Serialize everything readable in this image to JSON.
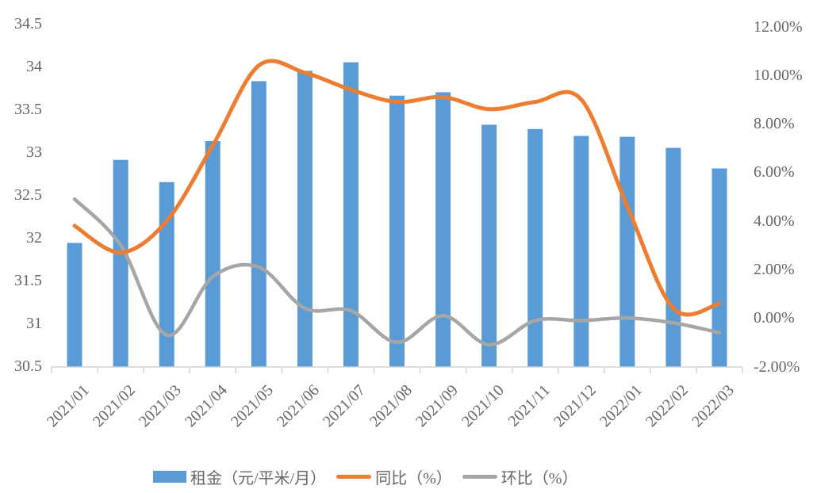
{
  "chart_data": {
    "type": "bar",
    "combo": "bar + two smoothed lines on secondary axis",
    "title": "",
    "grid": false,
    "legend_position": "bottom",
    "categories": [
      "2021/01",
      "2021/02",
      "2021/03",
      "2021/04",
      "2021/05",
      "2021/06",
      "2021/07",
      "2021/08",
      "2021/09",
      "2021/10",
      "2021/11",
      "2021/12",
      "2022/01",
      "2022/02",
      "2022/03"
    ],
    "series": [
      {
        "name": "租金（元/平米/月）",
        "type": "bar",
        "axis": "left",
        "color": "#5B9BD5",
        "values": [
          31.94,
          32.91,
          32.65,
          33.13,
          33.83,
          33.95,
          34.05,
          33.66,
          33.7,
          33.32,
          33.27,
          33.19,
          33.18,
          33.05,
          32.81
        ]
      },
      {
        "name": "同比（%）",
        "type": "line",
        "axis": "right",
        "color": "#ED7D31",
        "values": [
          3.8,
          2.7,
          4.0,
          7.1,
          10.4,
          10.1,
          9.4,
          8.9,
          9.1,
          8.6,
          8.9,
          9.0,
          4.6,
          0.4,
          0.6
        ]
      },
      {
        "name": "环比（%）",
        "type": "line",
        "axis": "right",
        "color": "#A6A6A6",
        "values": [
          4.9,
          3.0,
          -0.7,
          1.7,
          2.1,
          0.4,
          0.3,
          -1.0,
          0.1,
          -1.1,
          -0.1,
          -0.1,
          0.0,
          -0.2,
          -0.6
        ]
      }
    ],
    "left_axis": {
      "min": 30.5,
      "max": 34.5,
      "step": 0.5,
      "ticks": [
        "34.5",
        "34",
        "33.5",
        "33",
        "32.5",
        "32",
        "31.5",
        "31",
        "30.5"
      ],
      "values": [
        34.5,
        34,
        33.5,
        33,
        32.5,
        32,
        31.5,
        31,
        30.5
      ]
    },
    "right_axis": {
      "min": -2,
      "max": 12,
      "step": 2,
      "ticks": [
        "12.00%",
        "10.00%",
        "8.00%",
        "6.00%",
        "4.00%",
        "2.00%",
        "0.00%",
        "-2.00%"
      ],
      "values": [
        12,
        10,
        8,
        6,
        4,
        2,
        0,
        -2
      ]
    },
    "colors": {
      "axis_line": "#D2D2D2",
      "label_text": "#666666",
      "background": "#FFFFFF"
    }
  }
}
